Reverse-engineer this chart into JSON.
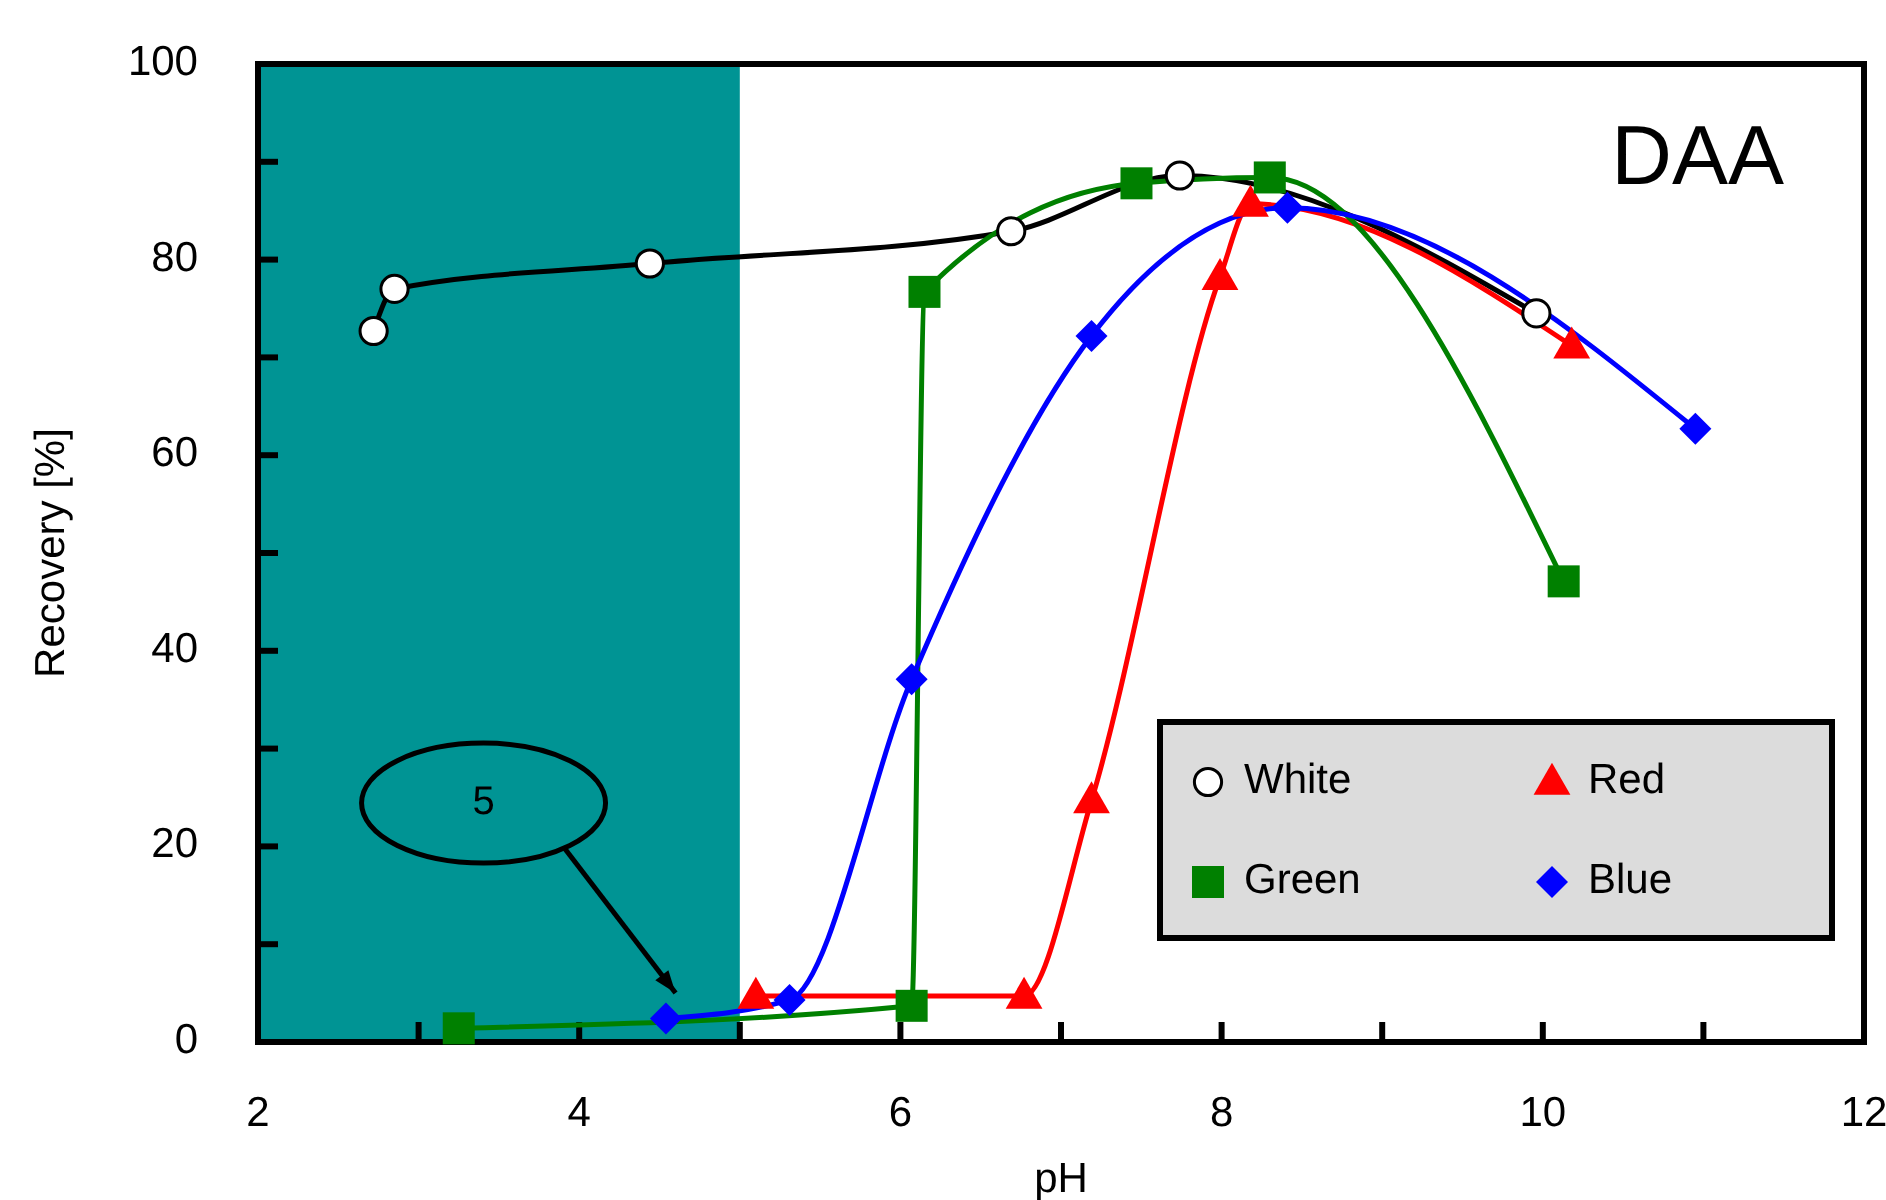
{
  "chart_data": {
    "type": "line",
    "xlabel": "pH",
    "ylabel": "Recovery [%]",
    "xlim": [
      2,
      12
    ],
    "xticks": [
      2,
      {
        "value": 3,
        "label": null
      },
      4,
      {
        "value": 5,
        "label": null
      },
      6,
      {
        "value": 7,
        "label": null
      },
      8,
      {
        "value": 9,
        "label": null
      },
      10,
      {
        "value": 11,
        "label": null
      },
      12
    ],
    "ylim": [
      0,
      100
    ],
    "yticks": [
      0,
      {
        "value": 10,
        "label": null
      },
      20,
      {
        "value": 30,
        "label": null
      },
      40,
      {
        "value": 50,
        "label": null
      },
      60,
      {
        "value": 70,
        "label": null
      },
      80,
      {
        "value": 90,
        "label": null
      },
      100
    ],
    "legend": "bottom right",
    "line_style": "solid",
    "bands": [
      {
        "axis": "x",
        "from": 2,
        "to": 5,
        "color": "#009494"
      }
    ],
    "annotations": [
      "DAA",
      "5"
    ],
    "series": [
      {
        "name": "White",
        "color": "#ffffff",
        "marker": "circle",
        "x": [
          2.72,
          2.85,
          4.44,
          6.69,
          7.74,
          9.96
        ],
        "values": [
          72.7,
          77,
          79.6,
          82.9,
          88.6,
          74.5
        ]
      },
      {
        "name": "Red",
        "color": "#ff0000",
        "marker": "triangle",
        "x": [
          5.1,
          6.77,
          7.19,
          7.99,
          8.18,
          10.18
        ],
        "values": [
          4.7,
          4.7,
          24.7,
          78.2,
          85.7,
          71.2
        ]
      },
      {
        "name": "Green",
        "color": "#008000",
        "marker": "square",
        "x": [
          3.25,
          6.07,
          6.15,
          7.47,
          8.3,
          10.13
        ],
        "values": [
          1.4,
          3.7,
          76.7,
          87.8,
          88.4,
          47.1
        ]
      },
      {
        "name": "Blue",
        "color": "#0000ff",
        "marker": "diamond",
        "x": [
          4.54,
          5.31,
          6.07,
          7.19,
          8.41,
          10.95
        ],
        "values": [
          2.4,
          4.3,
          37.1,
          72.2,
          85.3,
          62.7
        ]
      }
    ]
  }
}
